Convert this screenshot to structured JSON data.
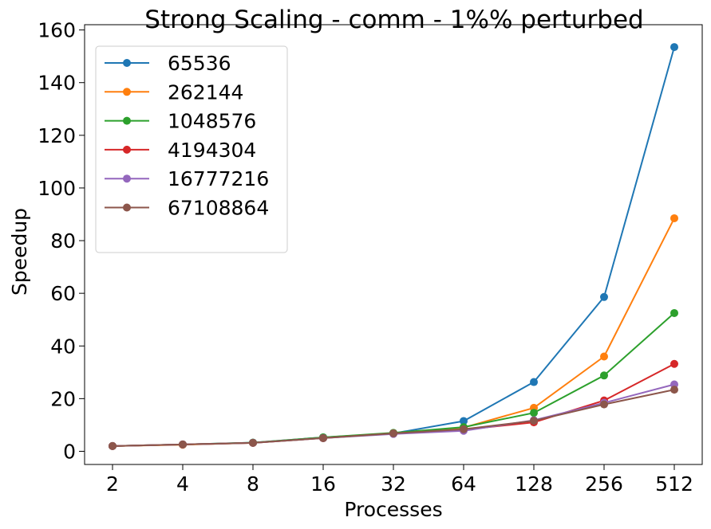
{
  "chart_data": {
    "type": "line",
    "title": "Strong Scaling - comm  - 1%% perturbed",
    "xlabel": "Processes",
    "ylabel": "Speedup",
    "categories": [
      "2",
      "4",
      "8",
      "16",
      "32",
      "64",
      "128",
      "256",
      "512"
    ],
    "ylim": [
      -5,
      162
    ],
    "yticks": [
      0,
      20,
      40,
      60,
      80,
      100,
      120,
      140,
      160
    ],
    "grid": false,
    "legend_position": "top-left",
    "series": [
      {
        "name": "65536",
        "color": "#1f77b4",
        "values": [
          2.0,
          2.6,
          3.3,
          5.3,
          6.8,
          11.5,
          26.3,
          58.6,
          153.5
        ]
      },
      {
        "name": "262144",
        "color": "#ff7f0e",
        "values": [
          2.0,
          2.5,
          3.2,
          5.2,
          6.9,
          9.0,
          16.5,
          36.0,
          88.5
        ]
      },
      {
        "name": "1048576",
        "color": "#2ca02c",
        "values": [
          2.0,
          2.6,
          3.3,
          5.3,
          7.0,
          9.2,
          14.6,
          28.8,
          52.5
        ]
      },
      {
        "name": "4194304",
        "color": "#d62728",
        "values": [
          2.0,
          2.6,
          3.2,
          5.0,
          6.8,
          8.2,
          11.0,
          19.3,
          33.2
        ]
      },
      {
        "name": "16777216",
        "color": "#9467bd",
        "values": [
          2.0,
          2.6,
          3.2,
          5.0,
          6.6,
          7.8,
          11.8,
          18.4,
          25.4
        ]
      },
      {
        "name": "67108864",
        "color": "#8c564b",
        "values": [
          2.0,
          2.6,
          3.2,
          5.0,
          6.8,
          8.4,
          11.6,
          17.8,
          23.4
        ]
      }
    ]
  }
}
